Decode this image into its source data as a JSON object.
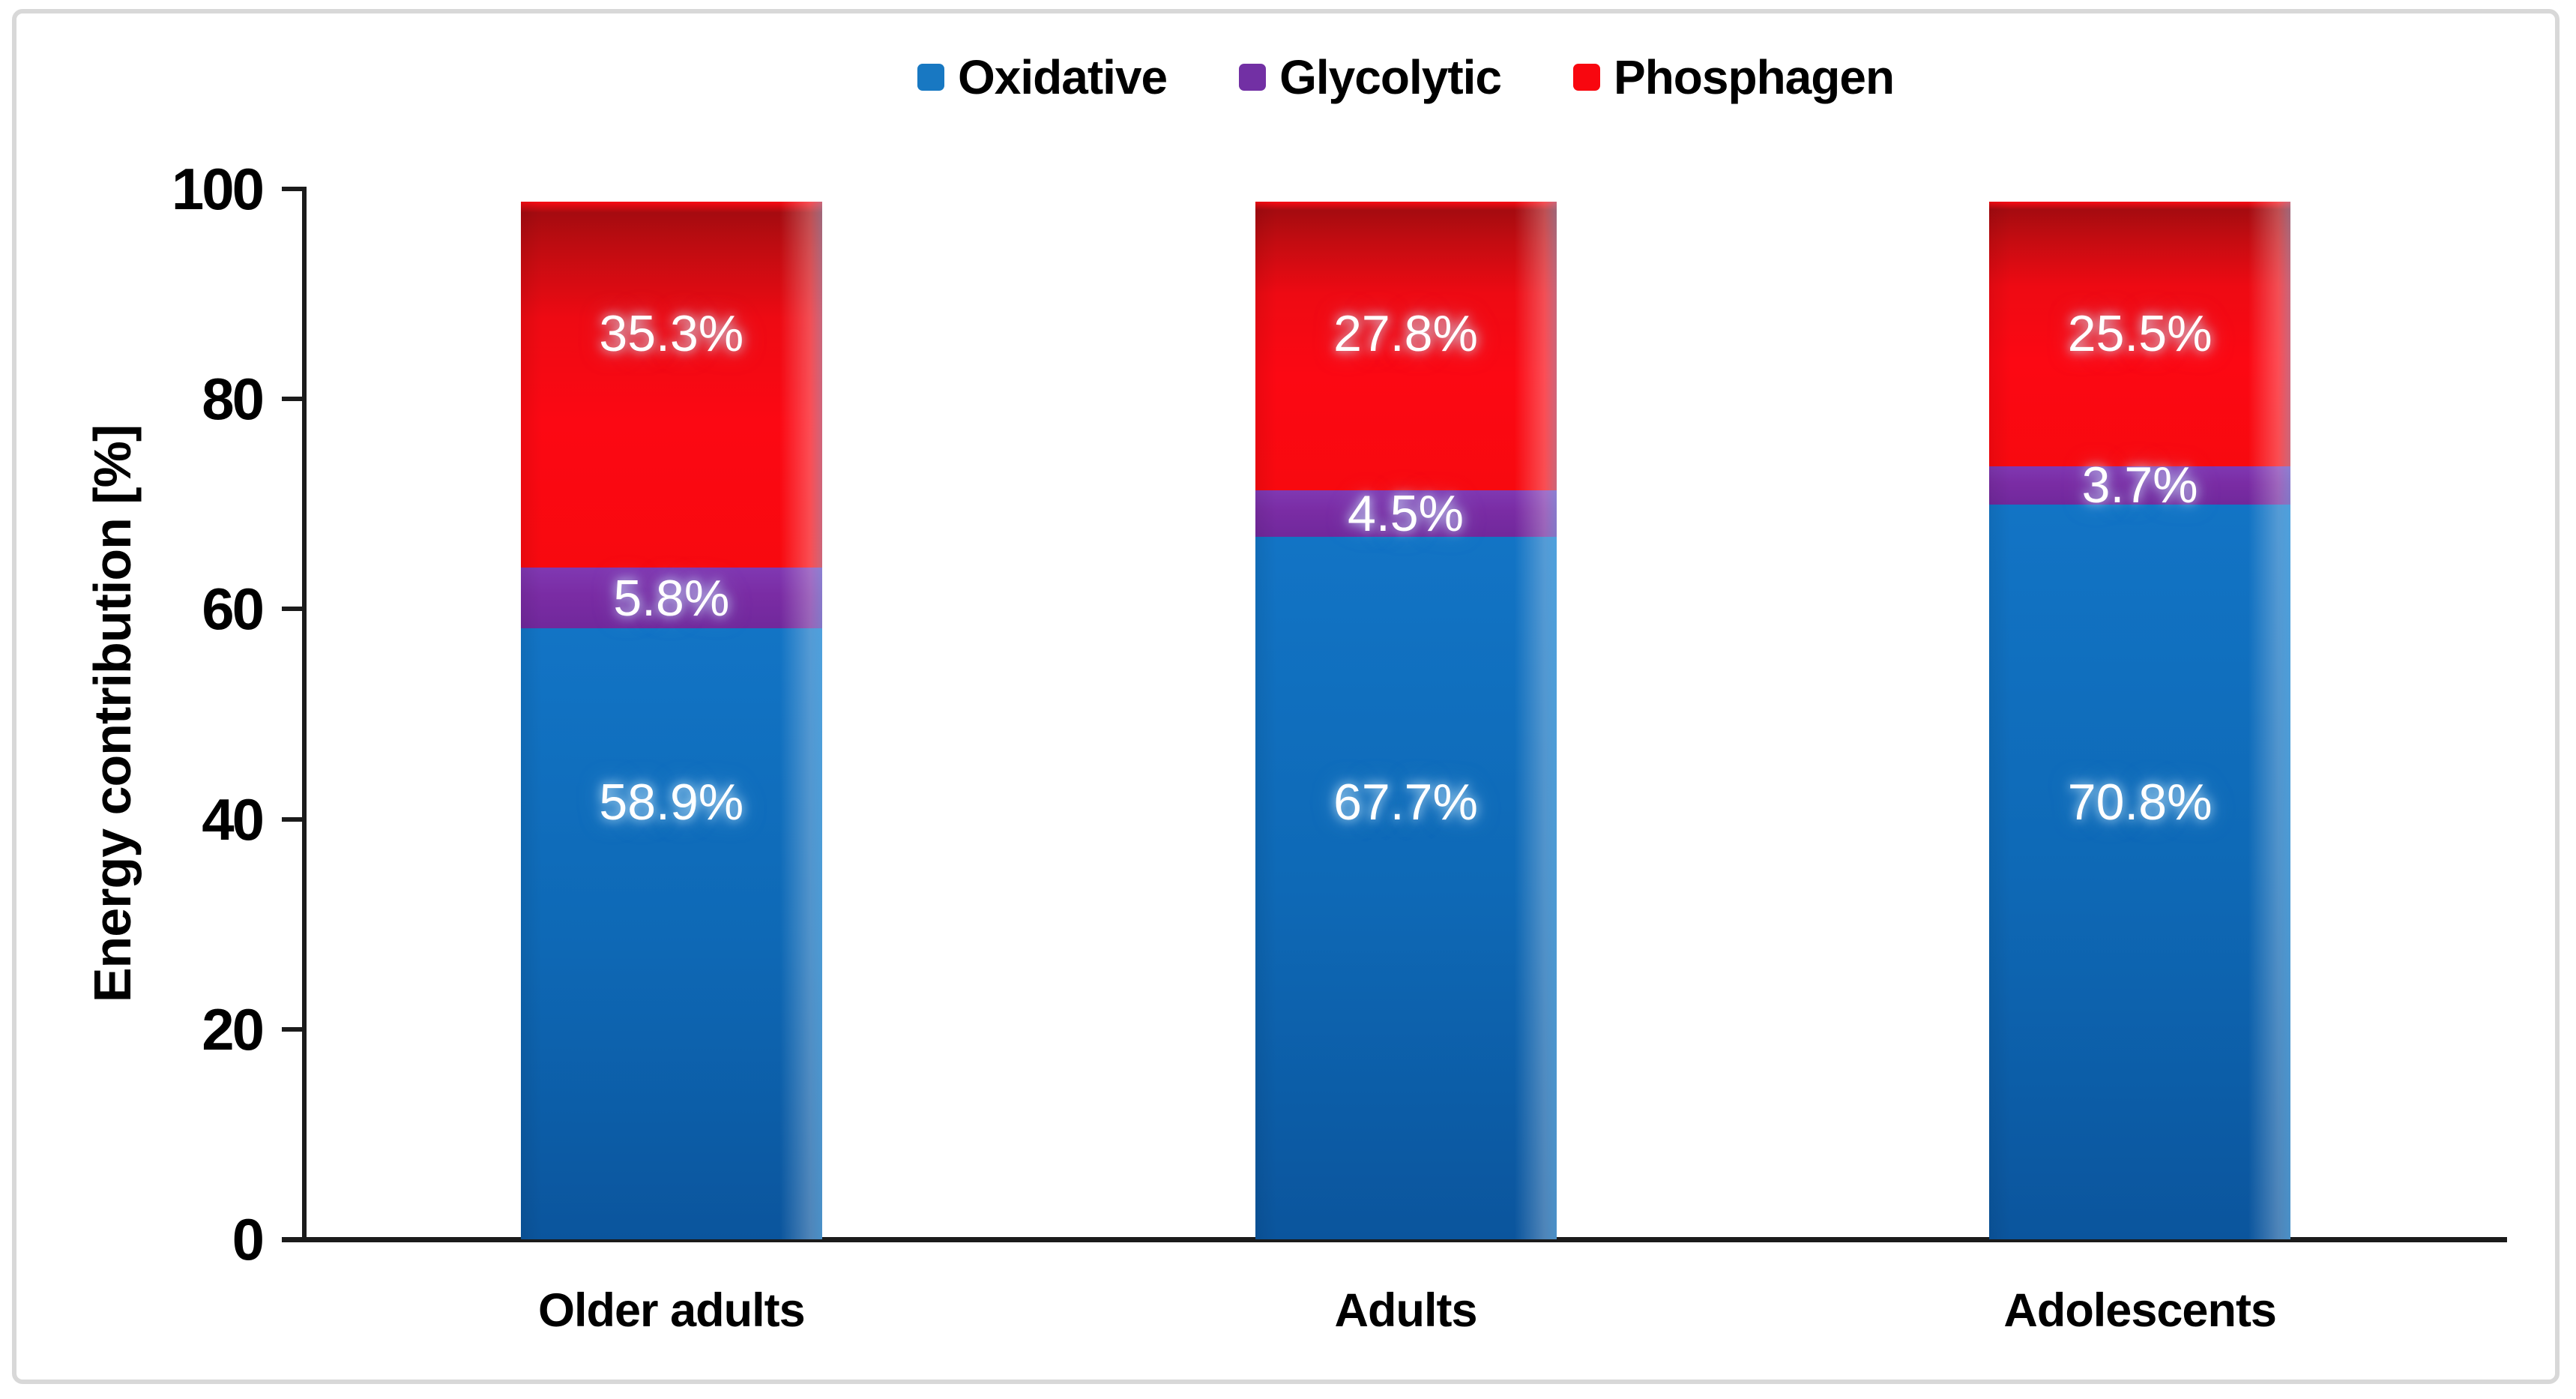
{
  "figure": {
    "background_color": "#ffffff",
    "frame_color": "#d8d8d8"
  },
  "chart_data": {
    "type": "bar",
    "stacked": true,
    "orientation": "vertical",
    "title": "",
    "xlabel": "",
    "ylabel": "Energy contribution [%]",
    "ylim": [
      0,
      100
    ],
    "yticks": [
      0,
      20,
      40,
      60,
      80,
      100
    ],
    "grid": false,
    "legend_position": "top-center",
    "categories": [
      "Older adults",
      "Adults",
      "Adolescents"
    ],
    "series": [
      {
        "name": "Oxidative",
        "color": "#1070BE",
        "legend_swatch_color": "#1878C2",
        "values": [
          58.9,
          67.7,
          70.8
        ],
        "data_labels": [
          "58.9%",
          "67.7%",
          "70.8%"
        ]
      },
      {
        "name": "Glycolytic",
        "color": "#7A2CA4",
        "legend_swatch_color": "#7230A4",
        "values": [
          5.8,
          4.5,
          3.7
        ],
        "data_labels": [
          "5.8%",
          "4.5%",
          "3.7%"
        ]
      },
      {
        "name": "Phosphagen",
        "color": "#F90A12",
        "legend_swatch_color": "#F8070F",
        "values": [
          35.3,
          27.8,
          25.5
        ],
        "data_labels": [
          "35.3%",
          "27.8%",
          "25.5%"
        ]
      }
    ],
    "data_label_color": "#ffffff",
    "axis_color": "#1b1b1b"
  }
}
